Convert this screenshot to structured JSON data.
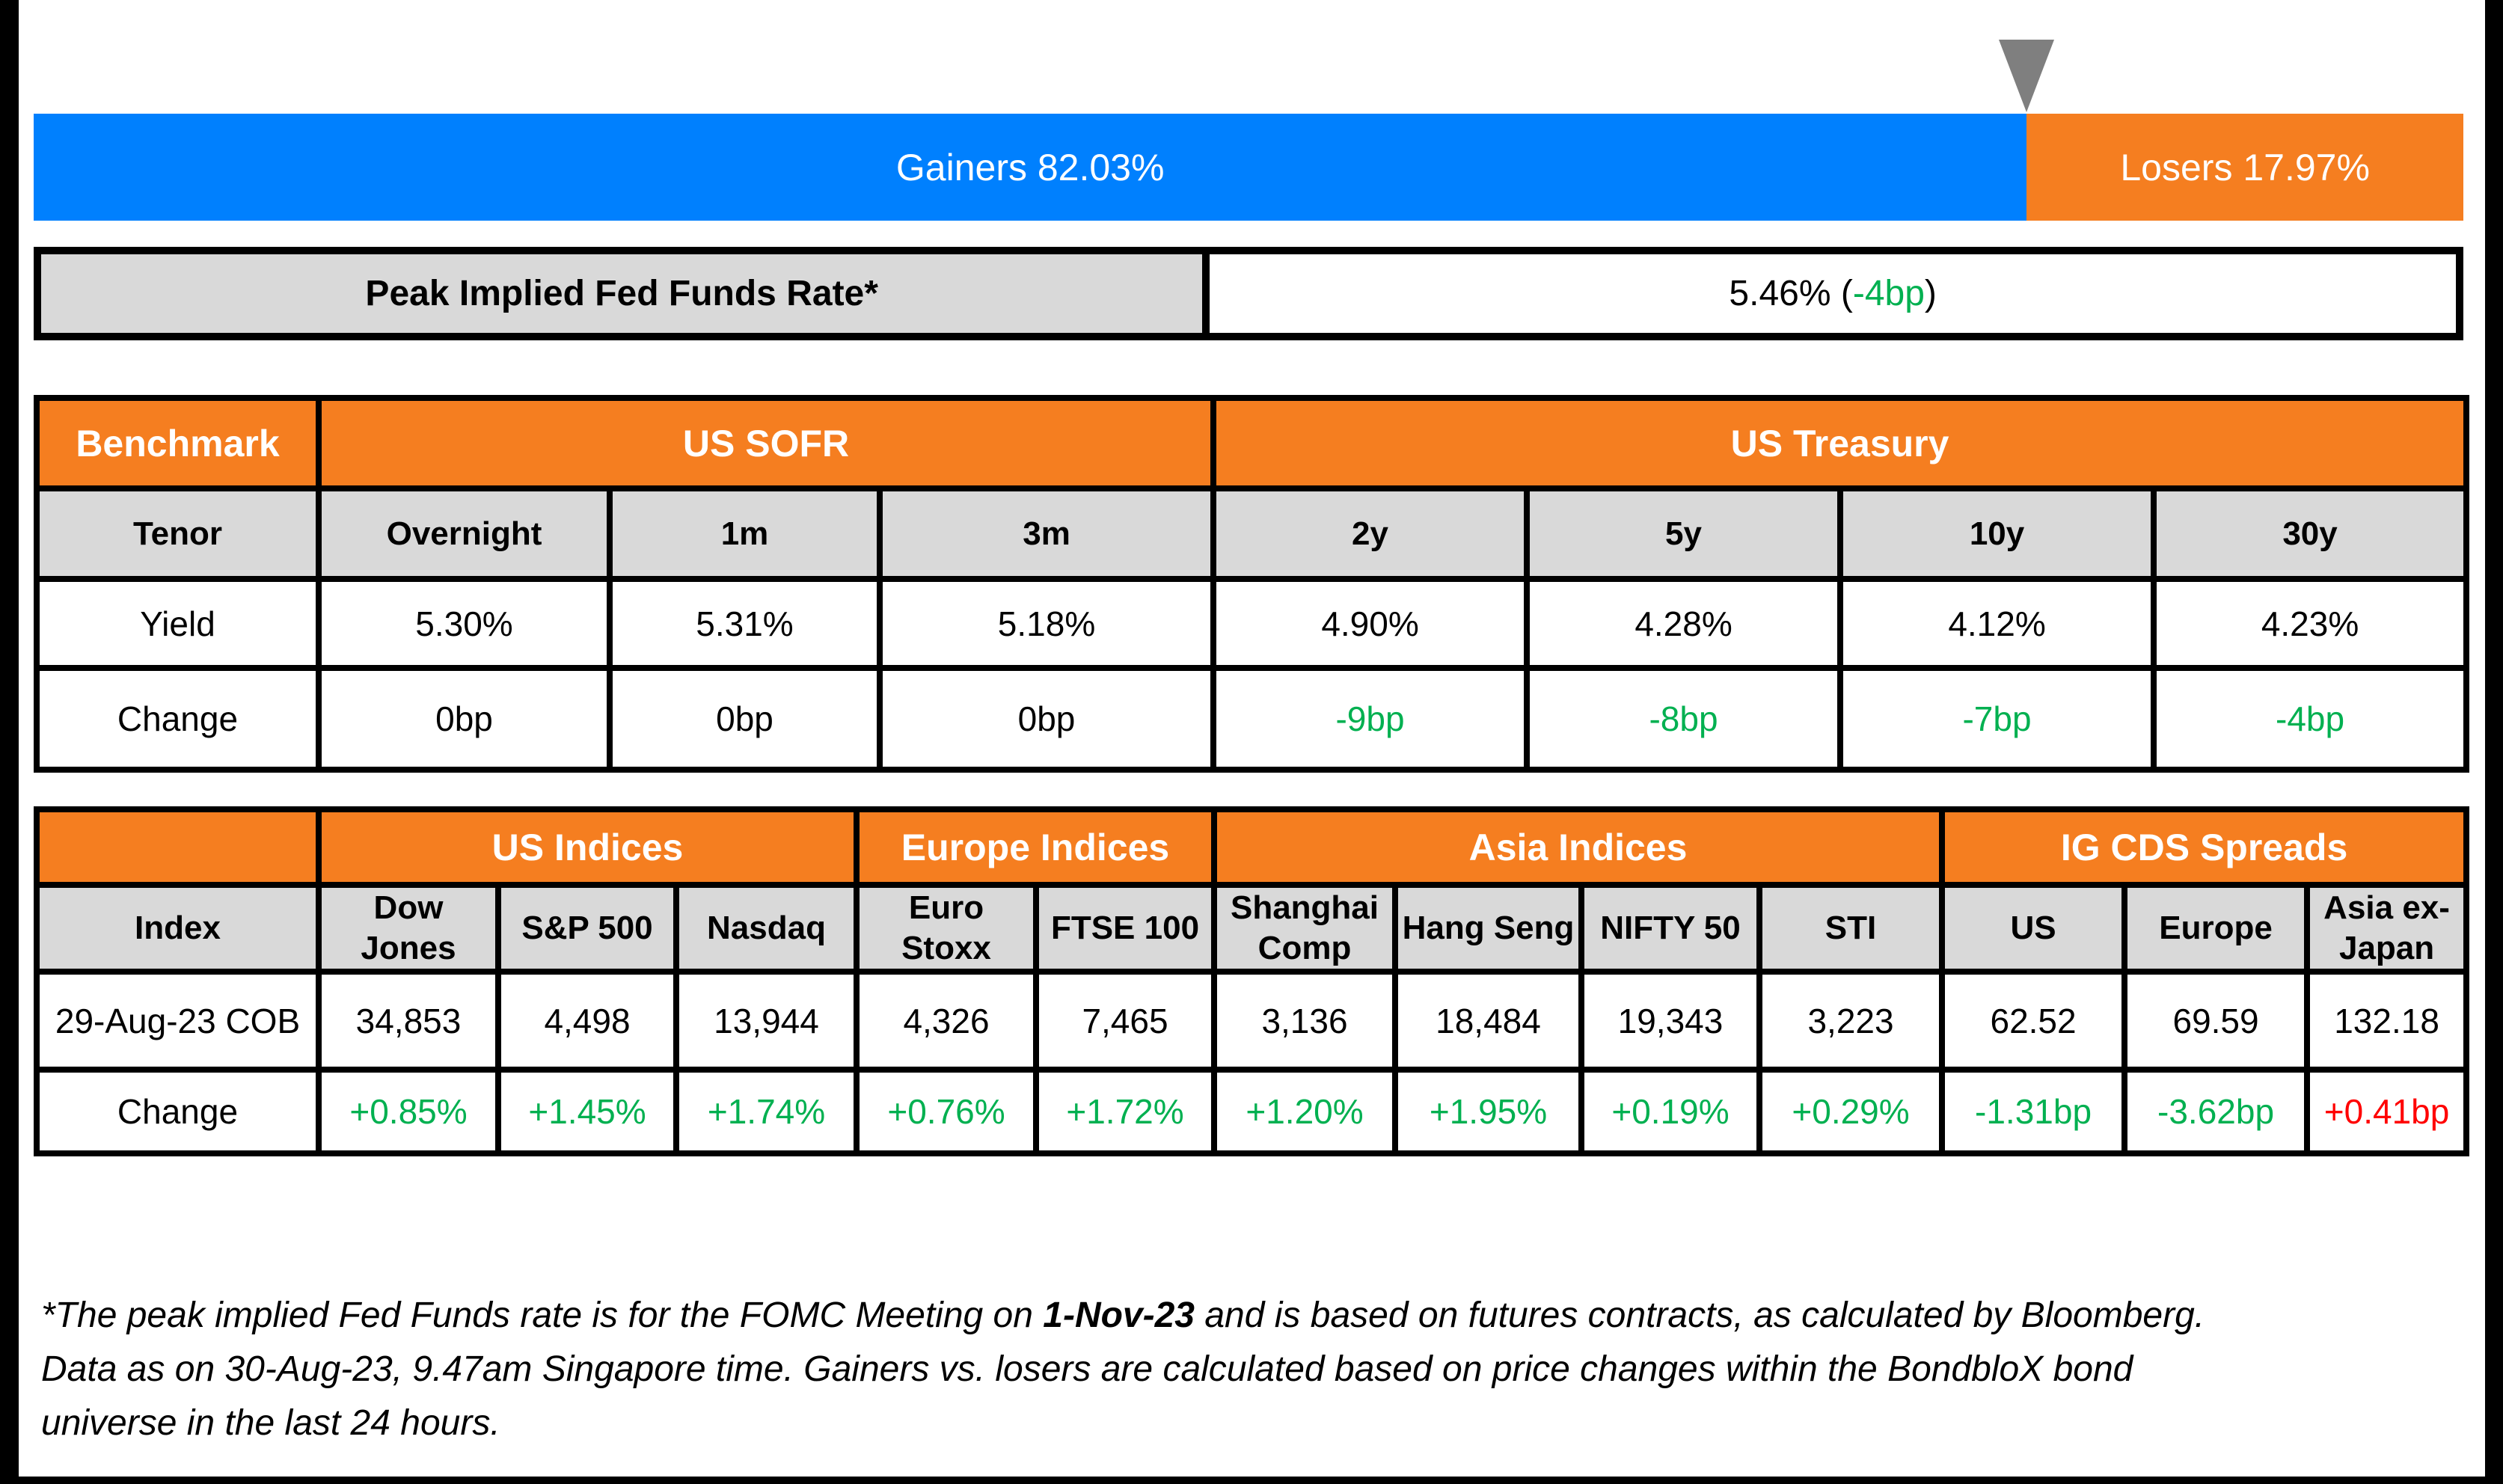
{
  "colors": {
    "gainers_blue": "#0080FE",
    "losers_orange": "#F57E20",
    "positive_green": "#00B050",
    "negative_red": "#FF0000",
    "header_gray": "#D9D9D9",
    "marker_gray": "#7F7F7F",
    "border_black": "#000000"
  },
  "gainers_losers_bar": {
    "gainers_label": "Gainers 82.03%",
    "losers_label": "Losers 17.97%",
    "gainers_pct": 82.03,
    "losers_pct": 17.97
  },
  "peak_rate": {
    "label": "Peak Implied Fed Funds Rate*",
    "value_main": "5.46% (",
    "value_change": "-4bp",
    "value_close": ")"
  },
  "benchmark_table": {
    "corner_label": "Benchmark",
    "group_headers": [
      "US SOFR",
      "US Treasury"
    ],
    "row_labels": {
      "tenor": "Tenor",
      "yield": "Yield",
      "change": "Change"
    },
    "tenors": [
      "Overnight",
      "1m",
      "3m",
      "2y",
      "5y",
      "10y",
      "30y"
    ],
    "yields": [
      "5.30%",
      "5.31%",
      "5.18%",
      "4.90%",
      "4.28%",
      "4.12%",
      "4.23%"
    ],
    "changes": [
      {
        "text": "0bp",
        "color": "#000000"
      },
      {
        "text": "0bp",
        "color": "#000000"
      },
      {
        "text": "0bp",
        "color": "#000000"
      },
      {
        "text": "-9bp",
        "color": "#00B050"
      },
      {
        "text": "-8bp",
        "color": "#00B050"
      },
      {
        "text": "-7bp",
        "color": "#00B050"
      },
      {
        "text": "-4bp",
        "color": "#00B050"
      }
    ]
  },
  "indices_table": {
    "group_headers": [
      "US Indices",
      "Europe Indices",
      "Asia Indices",
      "IG CDS Spreads"
    ],
    "row_labels": {
      "index": "Index",
      "cob": "29-Aug-23 COB",
      "change": "Change"
    },
    "columns": [
      "Dow Jones",
      "S&P 500",
      "Nasdaq",
      "Euro Stoxx",
      "FTSE 100",
      "Shanghai Comp",
      "Hang Seng",
      "NIFTY 50",
      "STI",
      "US",
      "Europe",
      "Asia ex-Japan"
    ],
    "values": [
      "34,853",
      "4,498",
      "13,944",
      "4,326",
      "7,465",
      "3,136",
      "18,484",
      "19,343",
      "3,223",
      "62.52",
      "69.59",
      "132.18"
    ],
    "changes": [
      {
        "text": "+0.85%",
        "color": "#00B050"
      },
      {
        "text": "+1.45%",
        "color": "#00B050"
      },
      {
        "text": "+1.74%",
        "color": "#00B050"
      },
      {
        "text": "+0.76%",
        "color": "#00B050"
      },
      {
        "text": "+1.72%",
        "color": "#00B050"
      },
      {
        "text": "+1.20%",
        "color": "#00B050"
      },
      {
        "text": "+1.95%",
        "color": "#00B050"
      },
      {
        "text": "+0.19%",
        "color": "#00B050"
      },
      {
        "text": "+0.29%",
        "color": "#00B050"
      },
      {
        "text": "-1.31bp",
        "color": "#00B050"
      },
      {
        "text": "-3.62bp",
        "color": "#00B050"
      },
      {
        "text": "+0.41bp",
        "color": "#FF0000"
      }
    ]
  },
  "footnote": {
    "part1": "*The peak implied Fed Funds rate is for the FOMC Meeting on ",
    "bold": "1-Nov-23",
    "part2": " and is based on futures contracts, as calculated by Bloomberg. Data as on 30-Aug-23, 9.47am Singapore time. Gainers vs. losers are calculated based on price changes within the BondbloX bond universe in the last 24 hours."
  },
  "chart_data": [
    {
      "type": "bar",
      "title": "Gainers vs Losers (BondbloX bond universe, last 24 hours)",
      "orientation": "horizontal-stacked",
      "categories": [
        "Gainers",
        "Losers"
      ],
      "values": [
        82.03,
        17.97
      ],
      "unit": "%",
      "colors": [
        "#0080FE",
        "#F57E20"
      ],
      "annotation": "gray triangle marker at the Gainers/Losers boundary"
    },
    {
      "type": "table",
      "title": "Benchmark",
      "columns": [
        "Tenor",
        "Overnight",
        "1m",
        "3m",
        "2y",
        "5y",
        "10y",
        "30y"
      ],
      "groups": {
        "US SOFR": [
          "Overnight",
          "1m",
          "3m"
        ],
        "US Treasury": [
          "2y",
          "5y",
          "10y",
          "30y"
        ]
      },
      "rows": [
        [
          "Yield",
          "5.30%",
          "5.31%",
          "5.18%",
          "4.90%",
          "4.28%",
          "4.12%",
          "4.23%"
        ],
        [
          "Change",
          "0bp",
          "0bp",
          "0bp",
          "-9bp",
          "-8bp",
          "-7bp",
          "-4bp"
        ]
      ]
    },
    {
      "type": "table",
      "title": "Indices and IG CDS Spreads",
      "columns": [
        "Index",
        "Dow Jones",
        "S&P 500",
        "Nasdaq",
        "Euro Stoxx",
        "FTSE 100",
        "Shanghai Comp",
        "Hang Seng",
        "NIFTY 50",
        "STI",
        "US",
        "Europe",
        "Asia ex-Japan"
      ],
      "groups": {
        "US Indices": [
          "Dow Jones",
          "S&P 500",
          "Nasdaq"
        ],
        "Europe Indices": [
          "Euro Stoxx",
          "FTSE 100"
        ],
        "Asia Indices": [
          "Shanghai Comp",
          "Hang Seng",
          "NIFTY 50",
          "STI"
        ],
        "IG CDS Spreads": [
          "US",
          "Europe",
          "Asia ex-Japan"
        ]
      },
      "rows": [
        [
          "29-Aug-23 COB",
          "34,853",
          "4,498",
          "13,944",
          "4,326",
          "7,465",
          "3,136",
          "18,484",
          "19,343",
          "3,223",
          "62.52",
          "69.59",
          "132.18"
        ],
        [
          "Change",
          "+0.85%",
          "+1.45%",
          "+1.74%",
          "+0.76%",
          "+1.72%",
          "+1.20%",
          "+1.95%",
          "+0.19%",
          "+0.29%",
          "-1.31bp",
          "-3.62bp",
          "+0.41bp"
        ]
      ]
    },
    {
      "type": "other",
      "title": "Peak Implied Fed Funds Rate",
      "value": "5.46%",
      "change": "-4bp"
    }
  ]
}
